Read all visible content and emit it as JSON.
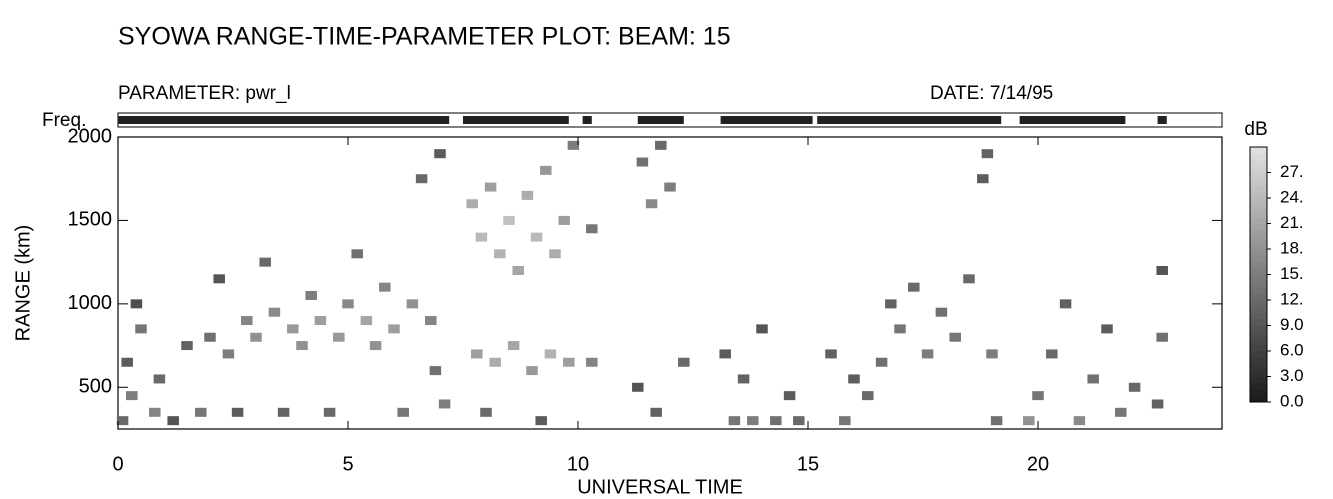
{
  "chart_data": {
    "type": "range-time",
    "title": "SYOWA RANGE-TIME-PARAMETER PLOT: BEAM: 15",
    "parameter": "PARAMETER: pwr_l",
    "date": "DATE: 7/14/95",
    "freq_label": "Freq.",
    "freq_segments": [
      [
        0,
        7.2
      ],
      [
        7.5,
        9.8
      ],
      [
        10.1,
        10.3
      ],
      [
        11.3,
        12.3
      ],
      [
        13.1,
        15.1
      ],
      [
        15.2,
        19.2
      ],
      [
        19.6,
        21.9
      ],
      [
        22.6,
        22.8
      ]
    ],
    "xlabel": "UNIVERSAL TIME",
    "ylabel": "RANGE (km)",
    "xlim": [
      0,
      24
    ],
    "xticks": [
      0,
      5,
      10,
      15,
      20
    ],
    "ylim": [
      250,
      2000
    ],
    "yticks": [
      500,
      1000,
      1500,
      2000
    ],
    "x": [
      0.1,
      0.3,
      0.2,
      0.5,
      0.4,
      0.8,
      0.9,
      1.2,
      1.5,
      1.8,
      2.0,
      2.2,
      2.4,
      2.6,
      2.8,
      3.0,
      3.2,
      3.4,
      3.6,
      3.8,
      4.0,
      4.2,
      4.4,
      4.6,
      4.8,
      5.0,
      5.2,
      5.4,
      5.6,
      5.8,
      6.0,
      6.2,
      6.4,
      6.6,
      6.8,
      7.0,
      6.9,
      7.1,
      7.7,
      7.9,
      8.1,
      8.3,
      8.5,
      8.7,
      8.9,
      9.1,
      9.3,
      9.5,
      9.7,
      9.9,
      7.8,
      8.2,
      8.6,
      9.0,
      9.4,
      9.8,
      8.0,
      9.2,
      10.3,
      10.3,
      11.4,
      11.6,
      11.8,
      12.0,
      11.3,
      11.7,
      12.3,
      13.2,
      13.4,
      13.6,
      13.8,
      14.0,
      14.3,
      14.6,
      14.8,
      15.5,
      15.8,
      16.0,
      16.3,
      16.6,
      16.8,
      17.0,
      17.3,
      17.6,
      17.9,
      18.2,
      18.5,
      18.8,
      18.9,
      19.0,
      19.1,
      19.8,
      20.0,
      20.3,
      20.6,
      20.9,
      21.2,
      21.5,
      21.8,
      22.1,
      22.7,
      22.6,
      22.7
    ],
    "y": [
      300,
      450,
      650,
      850,
      1000,
      350,
      550,
      300,
      750,
      350,
      800,
      1150,
      700,
      350,
      900,
      800,
      1250,
      950,
      350,
      850,
      750,
      1050,
      900,
      350,
      800,
      1000,
      1300,
      900,
      750,
      1100,
      850,
      350,
      1000,
      1750,
      900,
      1900,
      600,
      400,
      1600,
      1400,
      1700,
      1300,
      1500,
      1200,
      1650,
      1400,
      1800,
      1300,
      1500,
      1950,
      700,
      650,
      750,
      600,
      700,
      650,
      350,
      300,
      1450,
      650,
      1850,
      1600,
      1950,
      1700,
      500,
      350,
      650,
      700,
      300,
      550,
      300,
      850,
      300,
      450,
      300,
      700,
      300,
      550,
      450,
      650,
      1000,
      850,
      1100,
      700,
      950,
      800,
      1150,
      1750,
      1900,
      700,
      300,
      300,
      450,
      700,
      1000,
      300,
      550,
      850,
      350,
      500,
      800,
      400,
      1200
    ],
    "values": [
      12,
      15,
      10,
      14,
      8,
      16,
      12,
      9,
      11,
      14,
      13,
      9,
      15,
      10,
      16,
      18,
      12,
      17,
      11,
      19,
      18,
      15,
      20,
      12,
      19,
      17,
      13,
      21,
      18,
      16,
      20,
      14,
      18,
      12,
      16,
      10,
      13,
      15,
      22,
      24,
      20,
      23,
      25,
      21,
      22,
      24,
      19,
      22,
      20,
      15,
      20,
      22,
      21,
      19,
      23,
      20,
      12,
      10,
      14,
      16,
      13,
      17,
      12,
      15,
      9,
      11,
      12,
      10,
      14,
      11,
      15,
      9,
      13,
      10,
      12,
      11,
      14,
      10,
      12,
      13,
      11,
      14,
      12,
      15,
      13,
      14,
      12,
      10,
      11,
      15,
      13,
      18,
      14,
      12,
      11,
      17,
      13,
      10,
      14,
      12,
      13,
      11,
      9
    ],
    "colorbar": {
      "label": "dB",
      "lim": [
        0,
        30
      ],
      "ticks": [
        {
          "value": 27,
          "label": "27."
        },
        {
          "value": 24,
          "label": "24."
        },
        {
          "value": 21,
          "label": "21."
        },
        {
          "value": 18,
          "label": "18."
        },
        {
          "value": 15,
          "label": "15."
        },
        {
          "value": 12,
          "label": "12."
        },
        {
          "value": 9,
          "label": "9.0"
        },
        {
          "value": 6,
          "label": "6.0"
        },
        {
          "value": 3,
          "label": "3.0"
        },
        {
          "value": 0,
          "label": "0.0"
        }
      ]
    }
  }
}
